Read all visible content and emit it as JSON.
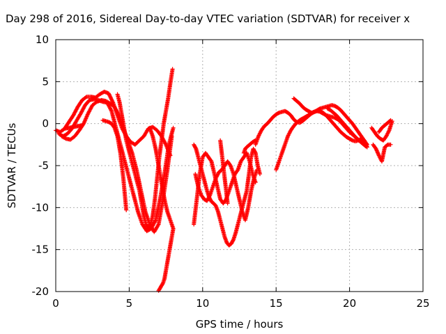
{
  "chart_data": {
    "type": "scatter",
    "title": "Day 298 of 2016, Sidereal Day-to-day VTEC variation (SDTVAR) for receiver x",
    "xlabel": "GPS time / hours",
    "ylabel": "SDTVAR / TECUs",
    "xlim": [
      0,
      25
    ],
    "ylim": [
      -20,
      10
    ],
    "x_ticks": [
      "0",
      "5",
      "10",
      "15",
      "20",
      "25"
    ],
    "y_ticks": [
      "10",
      "5",
      "0",
      "-5",
      "-10",
      "-15",
      "-20"
    ],
    "grid": true,
    "marker": "plus",
    "series_color": "#ff0000",
    "series": [
      {
        "x": [
          0.0,
          0.3,
          0.6,
          0.9,
          1.2,
          1.5,
          1.8,
          2.1,
          2.4,
          2.7,
          3.0,
          3.3,
          3.6,
          3.9,
          4.2,
          4.5,
          4.8,
          5.1,
          5.4,
          5.7,
          6.0,
          6.3,
          6.6,
          6.9,
          7.2,
          7.5,
          7.8
        ],
        "y": [
          -0.8,
          -1.0,
          -0.6,
          0.2,
          1.0,
          2.0,
          2.8,
          3.2,
          3.2,
          3.1,
          3.5,
          3.8,
          3.6,
          2.5,
          1.0,
          -0.5,
          -1.5,
          -2.2,
          -2.5,
          -2.0,
          -1.5,
          -0.6,
          -0.4,
          -0.8,
          -1.5,
          -2.5,
          -3.8
        ]
      },
      {
        "x": [
          0.2,
          0.5,
          0.8,
          1.1,
          1.4,
          1.7,
          2.0,
          2.3,
          2.6,
          2.9,
          3.2,
          3.5,
          3.8,
          4.1,
          4.4,
          4.7,
          5.0,
          5.3,
          5.6,
          5.9,
          6.2,
          6.5,
          6.8,
          7.1,
          7.4,
          7.7,
          8.0
        ],
        "y": [
          -1.2,
          -1.5,
          -1.2,
          -0.6,
          0.3,
          1.2,
          2.2,
          2.8,
          2.9,
          2.8,
          2.6,
          2.5,
          1.5,
          -0.5,
          -2.5,
          -4.5,
          -6.5,
          -8.5,
          -10.5,
          -12.0,
          -12.8,
          -12.5,
          -11.5,
          -9.0,
          -6.0,
          -2.5,
          -0.5
        ]
      },
      {
        "x": [
          0.4,
          0.7,
          1.0,
          1.3,
          1.6,
          1.9,
          2.2,
          2.5,
          2.8,
          3.1,
          3.4,
          3.7,
          4.0,
          4.3,
          4.6,
          4.9,
          5.2,
          5.5,
          5.8,
          6.1,
          6.4,
          6.7,
          7.0,
          7.3,
          7.6,
          7.9
        ],
        "y": [
          -1.5,
          -1.8,
          -1.9,
          -1.5,
          -0.8,
          0.0,
          1.2,
          2.2,
          2.6,
          2.8,
          2.7,
          2.4,
          2.0,
          1.0,
          -0.5,
          -2.0,
          -3.5,
          -5.5,
          -8.0,
          -10.5,
          -12.0,
          -12.9,
          -12.0,
          -9.0,
          -5.5,
          -1.5
        ]
      },
      {
        "x": [
          4.2,
          4.35,
          4.5,
          4.65,
          4.8,
          4.95,
          5.1,
          5.25,
          5.4,
          5.55,
          5.7,
          5.85,
          6.0,
          6.15,
          6.3,
          6.45,
          6.6,
          6.75,
          6.9,
          7.05,
          7.2,
          7.35,
          7.5,
          7.65,
          7.8,
          7.95
        ],
        "y": [
          3.5,
          2.5,
          1.0,
          -0.5,
          -2.0,
          -3.0,
          -4.0,
          -5.0,
          -6.0,
          -7.0,
          -8.0,
          -9.5,
          -11.0,
          -12.0,
          -12.5,
          -12.0,
          -11.0,
          -9.0,
          -6.5,
          -4.0,
          -2.0,
          0.0,
          1.5,
          3.0,
          4.8,
          6.5
        ]
      },
      {
        "x": [
          3.2,
          3.4,
          3.6,
          3.8,
          4.0,
          4.2,
          4.4,
          4.6,
          4.8
        ],
        "y": [
          0.4,
          0.3,
          0.2,
          0.0,
          -0.5,
          -1.5,
          -3.5,
          -6.5,
          -10.3
        ]
      },
      {
        "x": [
          6.4,
          6.6,
          6.8,
          7.0,
          7.2,
          7.4,
          7.6,
          7.8,
          8.0,
          7.9,
          7.8,
          7.7,
          7.6,
          7.5,
          7.4,
          7.3,
          7.2,
          7.1,
          7.0
        ],
        "y": [
          -0.5,
          -1.5,
          -3.0,
          -5.0,
          -7.0,
          -9.0,
          -10.5,
          -11.5,
          -12.5,
          -13.5,
          -14.5,
          -15.5,
          -16.5,
          -17.5,
          -18.5,
          -19.0,
          -19.3,
          -19.6,
          -19.9
        ]
      },
      {
        "x": [
          0.6,
          0.9,
          1.2,
          1.5,
          1.8
        ],
        "y": [
          -0.6,
          -0.5,
          -0.4,
          -0.3,
          -0.2
        ]
      },
      {
        "x": [
          9.4,
          9.55,
          9.7,
          9.85,
          10.0,
          10.15,
          10.3,
          10.45,
          10.6,
          10.75,
          10.9,
          11.05,
          11.2,
          11.35,
          11.5,
          11.65,
          11.8,
          11.95,
          12.1,
          12.25,
          12.4,
          12.55,
          12.7,
          12.85,
          13.0,
          13.15,
          13.3,
          13.45,
          13.6,
          13.75,
          13.9
        ],
        "y": [
          -2.5,
          -3.0,
          -4.0,
          -5.0,
          -6.0,
          -7.0,
          -8.0,
          -8.8,
          -9.3,
          -9.5,
          -9.8,
          -10.5,
          -11.5,
          -12.5,
          -13.5,
          -14.2,
          -14.5,
          -14.3,
          -13.8,
          -13.0,
          -12.0,
          -11.0,
          -10.0,
          -9.0,
          -8.0,
          -6.0,
          -4.0,
          -3.0,
          -3.5,
          -5.0,
          -6.0
        ]
      },
      {
        "x": [
          9.4,
          9.6,
          9.8,
          10.0,
          10.2,
          10.4,
          10.6,
          10.8,
          11.0,
          11.2,
          11.4,
          11.6,
          11.8,
          12.0,
          12.2,
          12.4,
          12.6,
          12.8,
          13.0,
          13.2,
          13.4,
          13.6
        ],
        "y": [
          -12.0,
          -9.0,
          -6.0,
          -4.0,
          -3.5,
          -4.0,
          -4.5,
          -6.0,
          -7.5,
          -9.0,
          -9.5,
          -9.0,
          -8.0,
          -7.0,
          -6.0,
          -5.5,
          -4.5,
          -4.0,
          -3.5,
          -4.5,
          -6.0,
          -7.0
        ]
      },
      {
        "x": [
          9.5,
          9.7,
          9.9,
          10.1,
          10.3,
          10.5,
          10.7,
          10.9,
          11.1,
          11.3,
          11.5,
          11.7,
          11.9,
          12.1,
          12.3,
          12.5,
          12.7,
          12.9,
          13.1,
          13.3,
          13.5,
          13.7
        ],
        "y": [
          -6.0,
          -7.5,
          -8.5,
          -9.0,
          -9.2,
          -8.5,
          -7.5,
          -6.5,
          -5.8,
          -5.5,
          -5.0,
          -4.5,
          -5.0,
          -6.0,
          -7.5,
          -9.0,
          -10.5,
          -11.5,
          -10.0,
          -8.0,
          -6.5,
          -5.5
        ]
      },
      {
        "x": [
          11.2,
          11.3,
          11.4,
          11.5,
          11.6,
          11.7
        ],
        "y": [
          -2.0,
          -3.5,
          -5.0,
          -6.5,
          -8.0,
          -9.5
        ]
      },
      {
        "x": [
          12.8,
          12.9,
          13.0,
          13.2,
          13.4,
          13.6
        ],
        "y": [
          -3.5,
          -3.0,
          -2.8,
          -2.5,
          -2.2,
          -2.0
        ]
      },
      {
        "x": [
          13.6,
          13.8,
          14.0,
          14.2,
          14.4,
          14.6,
          14.8,
          15.0,
          15.2,
          15.4,
          15.6,
          15.8,
          16.0,
          16.2,
          16.4,
          16.6,
          16.8,
          17.0,
          17.2,
          17.4,
          17.6,
          17.8,
          18.0,
          18.2,
          18.4,
          18.6,
          18.8,
          19.0,
          19.2,
          19.4,
          19.6,
          19.8,
          20.0,
          20.2,
          20.4,
          20.6,
          20.8,
          21.0,
          21.2
        ],
        "y": [
          -2.5,
          -1.5,
          -0.8,
          -0.3,
          0.0,
          0.4,
          0.8,
          1.1,
          1.3,
          1.4,
          1.5,
          1.3,
          1.0,
          0.5,
          0.2,
          0.1,
          0.3,
          0.6,
          0.9,
          1.2,
          1.4,
          1.5,
          1.4,
          1.2,
          1.0,
          0.9,
          0.8,
          0.7,
          0.5,
          0.2,
          -0.2,
          -0.6,
          -1.0,
          -1.3,
          -1.6,
          -1.9,
          -2.2,
          -2.5,
          -2.8
        ]
      },
      {
        "x": [
          15.0,
          15.2,
          15.4,
          15.6,
          15.8,
          16.0,
          16.2,
          16.4,
          16.6,
          16.8,
          17.0,
          17.2,
          17.4,
          17.6,
          17.8,
          18.0,
          18.2,
          18.4,
          18.6,
          18.8,
          19.0,
          19.2,
          19.4,
          19.6,
          19.8,
          20.0,
          20.2,
          20.4,
          20.6,
          20.8,
          21.0,
          21.2
        ],
        "y": [
          -5.5,
          -4.5,
          -3.5,
          -2.5,
          -1.5,
          -0.8,
          -0.3,
          0.1,
          0.4,
          0.6,
          0.8,
          1.0,
          1.2,
          1.4,
          1.5,
          1.5,
          1.3,
          1.0,
          0.6,
          0.2,
          -0.2,
          -0.6,
          -1.0,
          -1.3,
          -1.6,
          -1.8,
          -2.0,
          -2.1,
          -2.0,
          -1.8,
          -2.0,
          -2.5
        ]
      },
      {
        "x": [
          16.2,
          16.4,
          16.6,
          16.8,
          17.0,
          17.2,
          17.4,
          17.6,
          17.8,
          18.0,
          18.2,
          18.4,
          18.6,
          18.8,
          19.0,
          19.2,
          19.4,
          19.6,
          19.8,
          20.0,
          20.2,
          20.4,
          20.6,
          20.8,
          21.0,
          21.2
        ],
        "y": [
          3.0,
          2.7,
          2.4,
          2.0,
          1.7,
          1.5,
          1.3,
          1.4,
          1.6,
          1.8,
          1.9,
          2.0,
          2.1,
          2.2,
          2.1,
          1.9,
          1.6,
          1.2,
          0.8,
          0.4,
          0.0,
          -0.5,
          -1.0,
          -1.5,
          -2.0,
          -2.8
        ]
      },
      {
        "x": [
          18.5,
          18.7,
          18.9,
          19.1,
          19.3,
          19.5,
          19.7,
          19.9,
          20.1,
          20.3,
          20.5,
          20.7,
          20.9,
          21.1
        ],
        "y": [
          1.8,
          1.6,
          1.3,
          1.0,
          0.6,
          0.2,
          -0.2,
          -0.6,
          -1.0,
          -1.4,
          -1.8,
          -2.1,
          -2.4,
          -2.7
        ]
      },
      {
        "x": [
          21.5,
          21.7,
          21.9,
          22.1,
          22.3,
          22.5,
          22.7,
          22.9
        ],
        "y": [
          -0.5,
          -1.0,
          -1.5,
          -1.8,
          -2.0,
          -1.5,
          -0.8,
          0.3
        ]
      },
      {
        "x": [
          21.6,
          21.8,
          22.0,
          22.2,
          22.4,
          22.6,
          22.8
        ],
        "y": [
          -2.5,
          -3.0,
          -3.8,
          -4.5,
          -2.8,
          -2.5,
          -2.5
        ]
      },
      {
        "x": [
          22.0,
          22.2,
          22.4,
          22.6,
          22.8
        ],
        "y": [
          -1.0,
          -0.5,
          -0.2,
          0.1,
          0.4
        ]
      }
    ]
  }
}
